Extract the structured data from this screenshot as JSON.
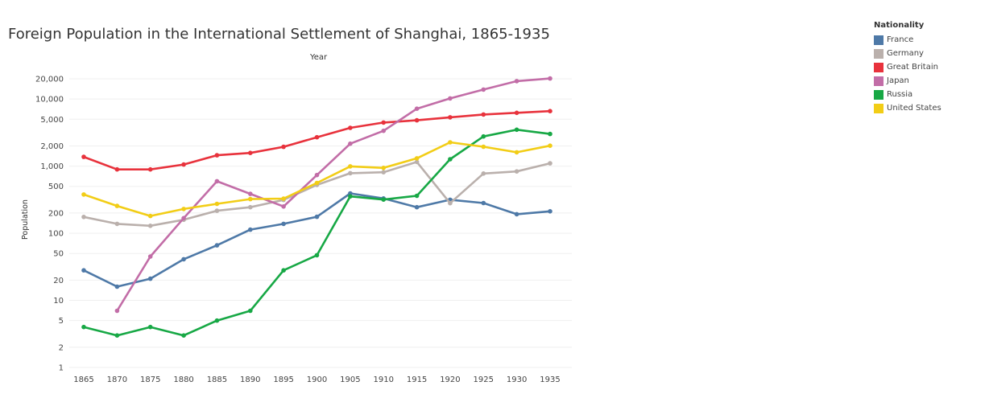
{
  "chart_data": {
    "type": "line",
    "title": "Foreign Population in the International Settlement of Shanghai, 1865-1935",
    "xlabel": "Year",
    "ylabel": "Population",
    "y_scale": "log",
    "ylim": [
      1,
      20000
    ],
    "grid": true,
    "x": [
      1865,
      1870,
      1875,
      1880,
      1885,
      1890,
      1895,
      1900,
      1905,
      1910,
      1915,
      1920,
      1925,
      1930,
      1935
    ],
    "x_tick_labels": [
      "1865",
      "1870",
      "1875",
      "1880",
      "1885",
      "1890",
      "1895",
      "1900",
      "1905",
      "1910",
      "1915",
      "1920",
      "1925",
      "1930",
      "1935"
    ],
    "y_ticks": [
      1,
      2,
      5,
      10,
      20,
      50,
      100,
      200,
      500,
      1000,
      2000,
      5000,
      10000,
      20000
    ],
    "y_tick_labels": [
      "1",
      "2",
      "5",
      "10",
      "20",
      "50",
      "100",
      "200",
      "500",
      "1,000",
      "2,000",
      "5,000",
      "10,000",
      "20,000"
    ],
    "legend": {
      "title": "Nationality",
      "position": "top-right"
    },
    "series": [
      {
        "name": "France",
        "color": "#4e79a7",
        "values": [
          28,
          16,
          21,
          41,
          66,
          113,
          138,
          176,
          393,
          330,
          244,
          316,
          282,
          192,
          212
        ]
      },
      {
        "name": "Germany",
        "color": "#bab0ac",
        "values": [
          175,
          138,
          129,
          159,
          216,
          244,
          314,
          525,
          785,
          811,
          1155,
          280,
          776,
          833,
          1100
        ]
      },
      {
        "name": "Great Britain",
        "color": "#e8323c",
        "values": [
          1372,
          894,
          892,
          1057,
          1453,
          1574,
          1936,
          2691,
          3713,
          4465,
          4822,
          5341,
          5879,
          6221,
          6595
        ]
      },
      {
        "name": "Japan",
        "color": "#c26da7",
        "values": [
          null,
          7,
          45,
          168,
          595,
          386,
          250,
          736,
          2157,
          3361,
          7169,
          10215,
          13804,
          18478,
          20242
        ]
      },
      {
        "name": "Russia",
        "color": "#17a845",
        "values": [
          4,
          3,
          4,
          3,
          5,
          7,
          28,
          47,
          354,
          317,
          361,
          1266,
          2766,
          3487,
          3017
        ]
      },
      {
        "name": "United States",
        "color": "#f2cd16",
        "values": [
          378,
          255,
          181,
          230,
          274,
          323,
          328,
          562,
          991,
          940,
          1307,
          2264,
          1942,
          1608,
          2017
        ]
      }
    ]
  }
}
